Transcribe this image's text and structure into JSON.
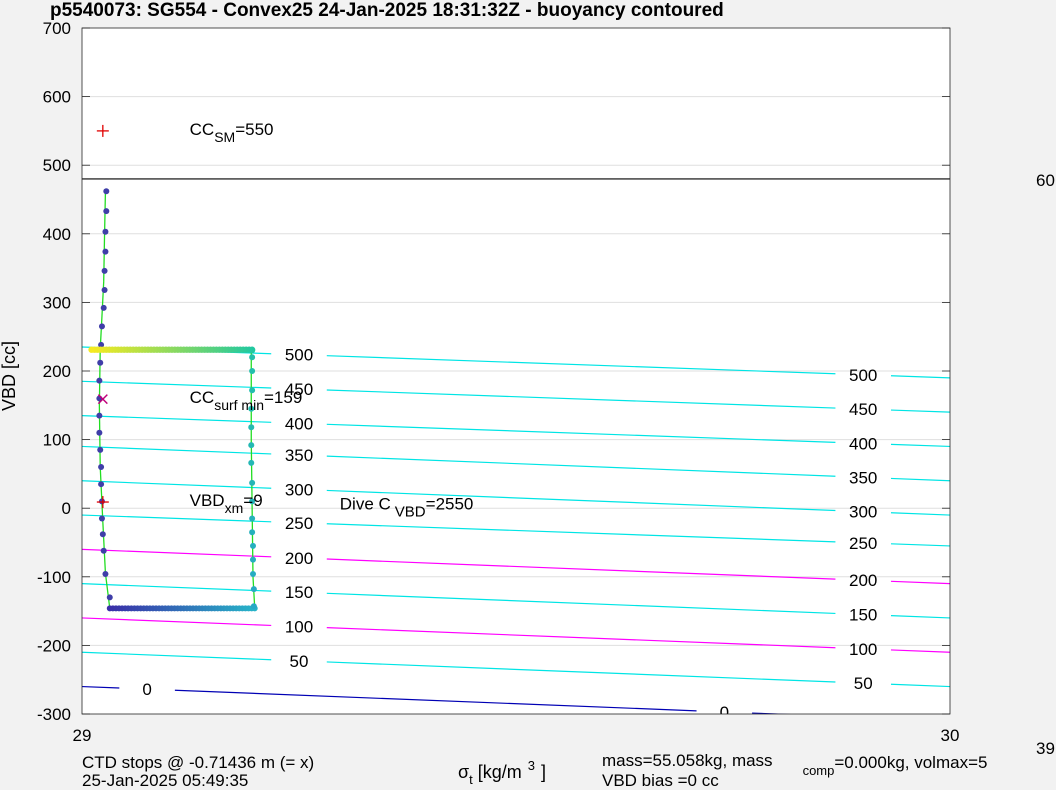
{
  "chart_data": {
    "type": "scatter",
    "title": "p5540073: SG554 - Convex25 24-Jan-2025 18:31:32Z - buoyancy contoured",
    "ylabel": "VBD [cc]",
    "xlabel": {
      "sym": "σ",
      "sub": "t",
      "units": " [kg/m",
      "sup": "3",
      "close": "]"
    },
    "xlim": [
      29,
      30
    ],
    "ylim": [
      -300,
      700
    ],
    "xticks": [
      {
        "v": 29,
        "label": "29"
      },
      {
        "v": 30,
        "label": "30"
      }
    ],
    "yticks": [
      {
        "v": 700,
        "label": "700"
      },
      {
        "v": 600,
        "label": "600"
      },
      {
        "v": 500,
        "label": "500"
      },
      {
        "v": 400,
        "label": "400"
      },
      {
        "v": 300,
        "label": "300"
      },
      {
        "v": 200,
        "label": "200"
      },
      {
        "v": 100,
        "label": "100"
      },
      {
        "v": 0,
        "label": "0"
      },
      {
        "v": -100,
        "label": "-100"
      },
      {
        "v": -200,
        "label": "-200"
      },
      {
        "v": -300,
        "label": "-300"
      }
    ],
    "grid": true,
    "ref_line": {
      "y": 480,
      "right_label": "60"
    },
    "contours": [
      {
        "level": "500",
        "y0": 235,
        "y1": 190,
        "color": "#00e5e5",
        "labels": [
          {
            "x": 29.25,
            "text": "500"
          },
          {
            "x": 29.9,
            "text": "500"
          }
        ]
      },
      {
        "level": "450",
        "y0": 185,
        "y1": 140,
        "color": "#00e5e5",
        "labels": [
          {
            "x": 29.25,
            "text": "450"
          },
          {
            "x": 29.9,
            "text": "450"
          }
        ]
      },
      {
        "level": "400",
        "y0": 135,
        "y1": 90,
        "color": "#00e5e5",
        "labels": [
          {
            "x": 29.25,
            "text": "400"
          },
          {
            "x": 29.9,
            "text": "400"
          }
        ]
      },
      {
        "level": "350",
        "y0": 90,
        "y1": 40,
        "color": "#00e5e5",
        "labels": [
          {
            "x": 29.25,
            "text": "350"
          },
          {
            "x": 29.9,
            "text": "350"
          }
        ]
      },
      {
        "level": "300",
        "y0": 40,
        "y1": -10,
        "color": "#00e5e5",
        "labels": [
          {
            "x": 29.25,
            "text": "300"
          },
          {
            "x": 29.9,
            "text": "300"
          }
        ]
      },
      {
        "level": "250",
        "y0": -10,
        "y1": -55,
        "color": "#00e5e5",
        "labels": [
          {
            "x": 29.25,
            "text": "250"
          },
          {
            "x": 29.9,
            "text": "250"
          }
        ]
      },
      {
        "level": "200",
        "y0": -60,
        "y1": -110,
        "color": "#ff00ff",
        "labels": [
          {
            "x": 29.25,
            "text": "200"
          },
          {
            "x": 29.9,
            "text": "200"
          }
        ]
      },
      {
        "level": "150",
        "y0": -110,
        "y1": -160,
        "color": "#00e5e5",
        "labels": [
          {
            "x": 29.25,
            "text": "150"
          },
          {
            "x": 29.9,
            "text": "150"
          }
        ]
      },
      {
        "level": "100",
        "y0": -160,
        "y1": -210,
        "color": "#ff00ff",
        "labels": [
          {
            "x": 29.25,
            "text": "100"
          },
          {
            "x": 29.9,
            "text": "100"
          }
        ]
      },
      {
        "level": "50",
        "y0": -210,
        "y1": -260,
        "color": "#00e5e5",
        "labels": [
          {
            "x": 29.25,
            "text": "50"
          },
          {
            "x": 29.9,
            "text": "50"
          }
        ]
      },
      {
        "level": "0",
        "y0": -260,
        "y1": -310,
        "color": "#0000b4",
        "labels": [
          {
            "x": 29.075,
            "text": "0"
          },
          {
            "x": 29.74,
            "text": "0"
          }
        ]
      }
    ],
    "profile": {
      "color": "#22dd22",
      "path": [
        {
          "x": 29.027,
          "y": 462
        },
        {
          "x": 29.026,
          "y": 400
        },
        {
          "x": 29.025,
          "y": 330
        },
        {
          "x": 29.023,
          "y": 280
        },
        {
          "x": 29.021,
          "y": 232
        },
        {
          "x": 29.02,
          "y": 150
        },
        {
          "x": 29.021,
          "y": 60
        },
        {
          "x": 29.024,
          "y": -20
        },
        {
          "x": 29.027,
          "y": -95
        },
        {
          "x": 29.032,
          "y": -146
        },
        {
          "x": 29.199,
          "y": -146
        },
        {
          "x": 29.197,
          "y": -100
        },
        {
          "x": 29.196,
          "y": 0
        },
        {
          "x": 29.195,
          "y": 100
        },
        {
          "x": 29.195,
          "y": 230
        },
        {
          "x": 29.01,
          "y": 231
        }
      ],
      "down_points": [
        {
          "x": 29.028,
          "y": 462
        },
        {
          "x": 29.028,
          "y": 433
        },
        {
          "x": 29.027,
          "y": 403
        },
        {
          "x": 29.027,
          "y": 374
        },
        {
          "x": 29.026,
          "y": 346
        },
        {
          "x": 29.026,
          "y": 318
        },
        {
          "x": 29.025,
          "y": 292
        },
        {
          "x": 29.023,
          "y": 265
        },
        {
          "x": 29.022,
          "y": 238
        },
        {
          "x": 29.021,
          "y": 212
        },
        {
          "x": 29.02,
          "y": 186
        },
        {
          "x": 29.02,
          "y": 160
        },
        {
          "x": 29.02,
          "y": 135
        },
        {
          "x": 29.02,
          "y": 110
        },
        {
          "x": 29.021,
          "y": 85
        },
        {
          "x": 29.022,
          "y": 60
        },
        {
          "x": 29.022,
          "y": 35
        },
        {
          "x": 29.023,
          "y": 10
        },
        {
          "x": 29.023,
          "y": -15
        },
        {
          "x": 29.024,
          "y": -38
        },
        {
          "x": 29.025,
          "y": -62
        },
        {
          "x": 29.027,
          "y": -96
        },
        {
          "x": 29.032,
          "y": -130
        }
      ],
      "bottom": {
        "x0": 29.032,
        "x1": 29.199,
        "y": -146,
        "n": 48,
        "color0": "#3a2ea8",
        "color1": "#27b3c8"
      },
      "up_points": [
        {
          "x": 29.198,
          "y": -143
        },
        {
          "x": 29.198,
          "y": -118
        },
        {
          "x": 29.197,
          "y": -96
        },
        {
          "x": 29.197,
          "y": -75
        },
        {
          "x": 29.197,
          "y": -55
        },
        {
          "x": 29.196,
          "y": -35
        },
        {
          "x": 29.196,
          "y": -15
        },
        {
          "x": 29.196,
          "y": 10
        },
        {
          "x": 29.196,
          "y": 37
        },
        {
          "x": 29.195,
          "y": 66
        },
        {
          "x": 29.195,
          "y": 92
        },
        {
          "x": 29.195,
          "y": 118
        },
        {
          "x": 29.195,
          "y": 145
        },
        {
          "x": 29.196,
          "y": 172
        },
        {
          "x": 29.196,
          "y": 200
        },
        {
          "x": 29.196,
          "y": 220
        },
        {
          "x": 29.196,
          "y": 230
        }
      ],
      "surface": {
        "x0": 29.196,
        "x1": 29.011,
        "y": 231,
        "n": 55,
        "color0": "#20c8a0",
        "color1": "#f5ea20"
      }
    },
    "markers": [
      {
        "name": "cc-sm",
        "x": 29.024,
        "y": 550,
        "symbol": "+",
        "color": "#e00000",
        "label": {
          "main": "CC",
          "sub": "SM",
          "rest": "=550",
          "x": 29.124,
          "y": 550
        }
      },
      {
        "name": "cc-surf-min",
        "x": 29.024,
        "y": 159,
        "symbol": "x",
        "color": "#c0007a",
        "label": {
          "main": "CC",
          "sub": "surf min",
          "rest": "=159",
          "x": 29.124,
          "y": 159
        }
      },
      {
        "name": "vbd-xm",
        "x": 29.024,
        "y": 9,
        "symbol": "+",
        "color": "#e00000",
        "label": {
          "main": "VBD",
          "sub": "xm",
          "rest": "=9",
          "x": 29.124,
          "y": 9
        }
      }
    ],
    "annotation": {
      "main": "Dive C",
      "sub": "VBD",
      "rest": "=2550",
      "x": 29.297,
      "y": 4
    },
    "footer": {
      "ctd_line1": "CTD stops @ -0.71436 m (= x)",
      "ctd_line2": "25-Jan-2025 05:49:35",
      "mass_line1_a": "mass=55.058kg, mass",
      "mass_line1_sub": "comp",
      "mass_line1_b": "=0.000kg, volmax=5",
      "mass_line2": "VBD bias =0 cc",
      "right_clip": "39"
    }
  }
}
